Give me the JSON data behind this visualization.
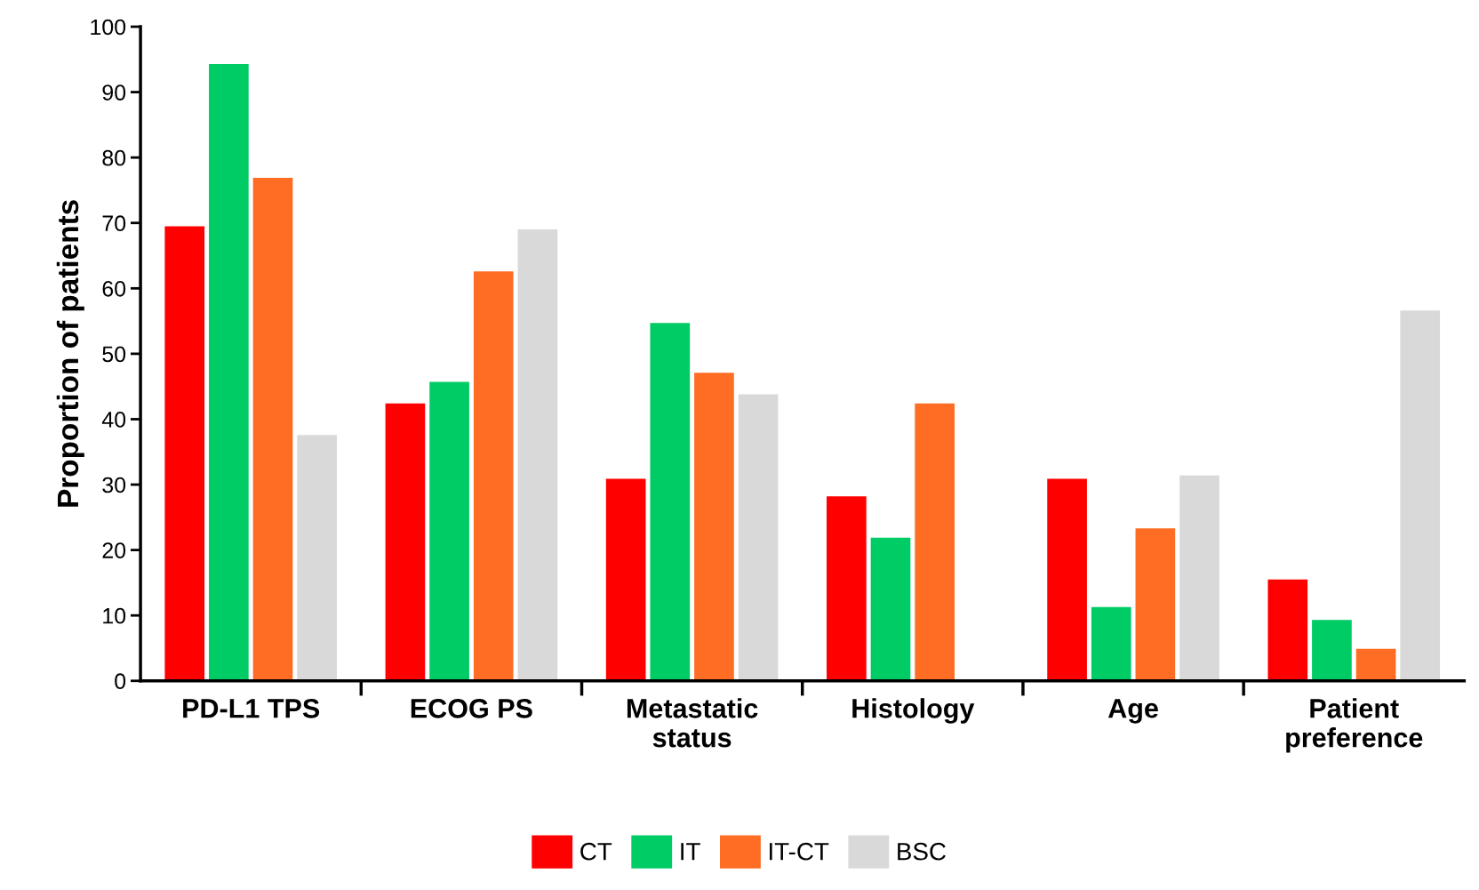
{
  "chart_data": {
    "type": "bar",
    "ylabel": "Proportion of patients",
    "categories": [
      "PD-L1 TPS",
      "ECOG PS",
      "Metastatic\nstatus",
      "Histology",
      "Age",
      "Patient\npreference"
    ],
    "series": [
      {
        "name": "CT",
        "color": "#ff0000",
        "values": [
          69.5,
          42.4,
          30.9,
          28.2,
          30.9,
          15.5
        ]
      },
      {
        "name": "IT",
        "color": "#00cc66",
        "values": [
          94.3,
          45.7,
          54.7,
          21.9,
          11.3,
          9.3
        ]
      },
      {
        "name": "IT-CT",
        "color": "#ff6d24",
        "values": [
          76.9,
          62.6,
          47.1,
          42.4,
          23.3,
          4.9
        ]
      },
      {
        "name": "BSC",
        "color": "#d9d9d9",
        "values": [
          37.6,
          69.0,
          43.8,
          null,
          31.4,
          56.6
        ]
      }
    ],
    "ylim": [
      0,
      100
    ],
    "yticks": [
      0,
      10,
      20,
      30,
      40,
      50,
      60,
      70,
      80,
      90,
      100
    ],
    "grid": false,
    "legend": "bottom"
  }
}
